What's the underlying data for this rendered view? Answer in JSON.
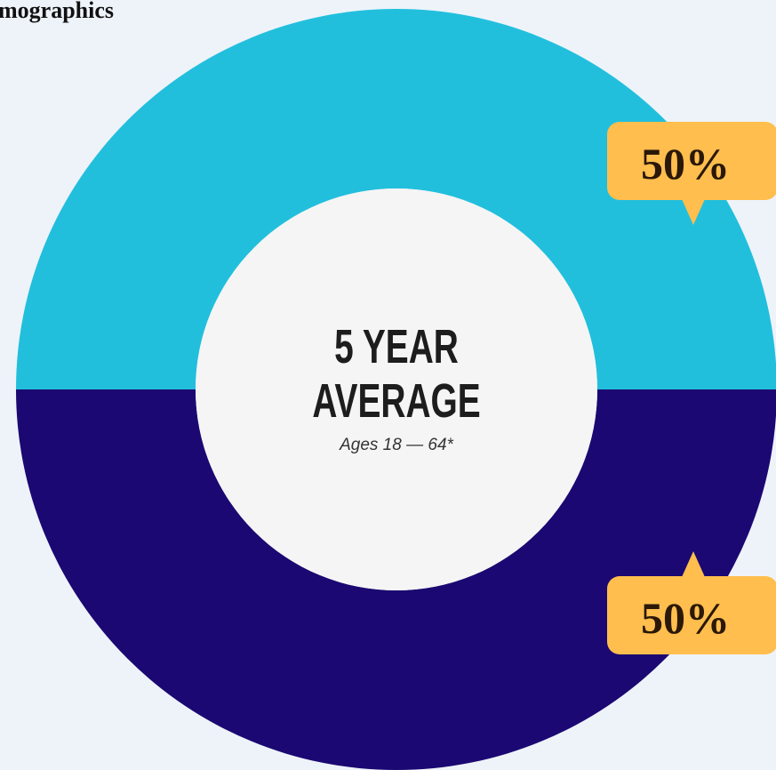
{
  "chart_data": {
    "type": "donut",
    "title": "mographics",
    "center_text": [
      "5 YEAR",
      "AVERAGE"
    ],
    "center_subtitle": "Ages 18 — 64*",
    "categories": [
      null,
      null
    ],
    "values": [
      50,
      50
    ],
    "value_labels": [
      "50%",
      "50%"
    ],
    "colors": [
      "#22bfdd",
      "#1b0872"
    ]
  }
}
